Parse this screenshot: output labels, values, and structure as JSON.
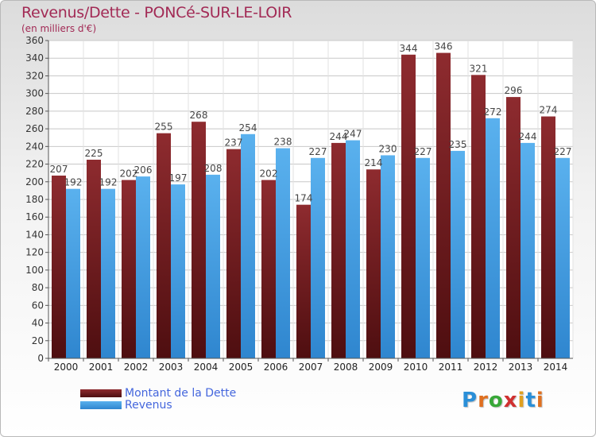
{
  "chart_data": {
    "type": "bar",
    "title": "Revenus/Dette - PONCé-SUR-LE-LOIR",
    "subtitle": "(en milliers d'€)",
    "categories": [
      "2000",
      "2001",
      "2002",
      "2003",
      "2004",
      "2005",
      "2006",
      "2007",
      "2008",
      "2009",
      "2010",
      "2011",
      "2012",
      "2013",
      "2014"
    ],
    "series": [
      {
        "name": "Montant de la Dette",
        "color": "#7a1e22",
        "values": [
          207,
          225,
          202,
          255,
          268,
          237,
          202,
          174,
          244,
          214,
          344,
          346,
          321,
          296,
          274
        ]
      },
      {
        "name": "Revenus",
        "color": "#3d9be0",
        "values": [
          192,
          192,
          206,
          197,
          208,
          254,
          238,
          227,
          247,
          230,
          227,
          235,
          272,
          244,
          227
        ]
      }
    ],
    "ylim": [
      0,
      360
    ],
    "ytick_step": 20,
    "grid": true,
    "legend": "bottom-left"
  },
  "logo": {
    "text": "Proxiti"
  }
}
